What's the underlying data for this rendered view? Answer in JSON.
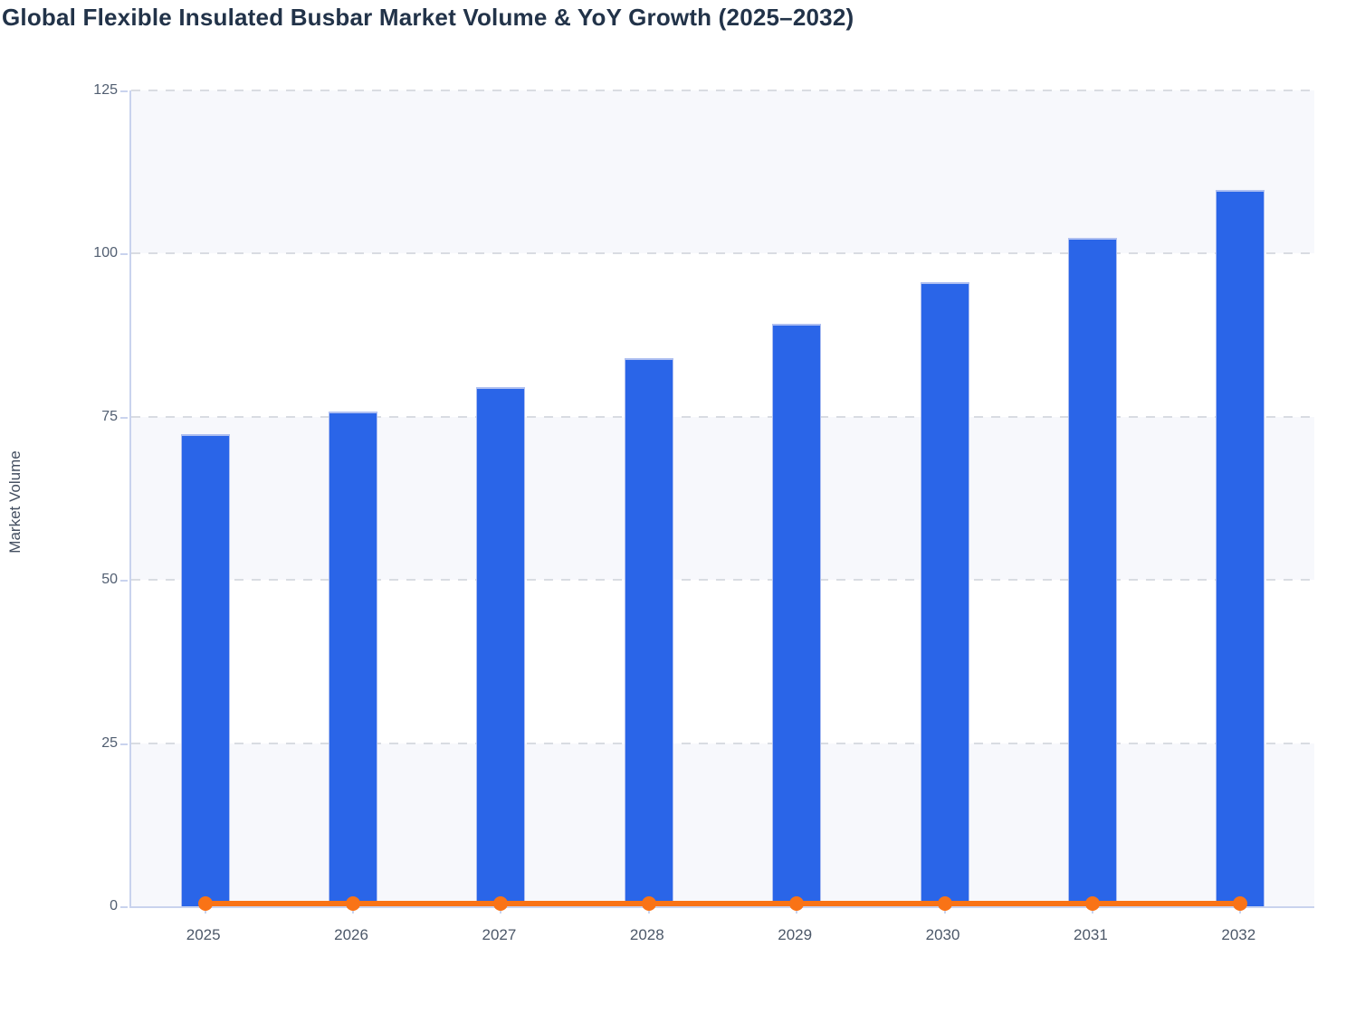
{
  "page": {
    "background": "#ffffff"
  },
  "chart_data": {
    "type": "bar",
    "title": "Global Flexible Insulated Busbar Market Volume & YoY Growth (2025–2032)",
    "xlabel": "",
    "ylabel": "Market Volume",
    "categories": [
      "2025",
      "2026",
      "2027",
      "2028",
      "2029",
      "2030",
      "2031",
      "2032"
    ],
    "series": [
      {
        "name": "Market Volume",
        "type": "bar",
        "color": "#2a65e8",
        "values": [
          72.4,
          75.8,
          79.6,
          84.0,
          89.3,
          95.6,
          102.4,
          109.8
        ]
      },
      {
        "name": "YoY Growth",
        "type": "line",
        "color": "#f97316",
        "values": [
          0,
          0,
          0,
          0,
          0,
          0,
          0,
          0
        ],
        "note": "line renders flat along the zero baseline with a round marker at each year"
      }
    ],
    "ylim": [
      0,
      125
    ],
    "yticks": [
      0,
      25,
      50,
      75,
      100,
      125
    ],
    "grid": "dashed horizontal gridlines at each y tick",
    "plot_bands": "alternating horizontal bands (0-25, 50-75, 100-125 shaded)",
    "legend": "none"
  },
  "colors": {
    "bar_fill": "#2a65e8",
    "bar_edge": "#aebff1",
    "line": "#f97316",
    "title_text": "#223349",
    "axis_text": "#515e71",
    "axis_line": "#c9d3ee",
    "gridline": "#d9dce2",
    "band": "#f7f8fc",
    "background": "#ffffff"
  }
}
